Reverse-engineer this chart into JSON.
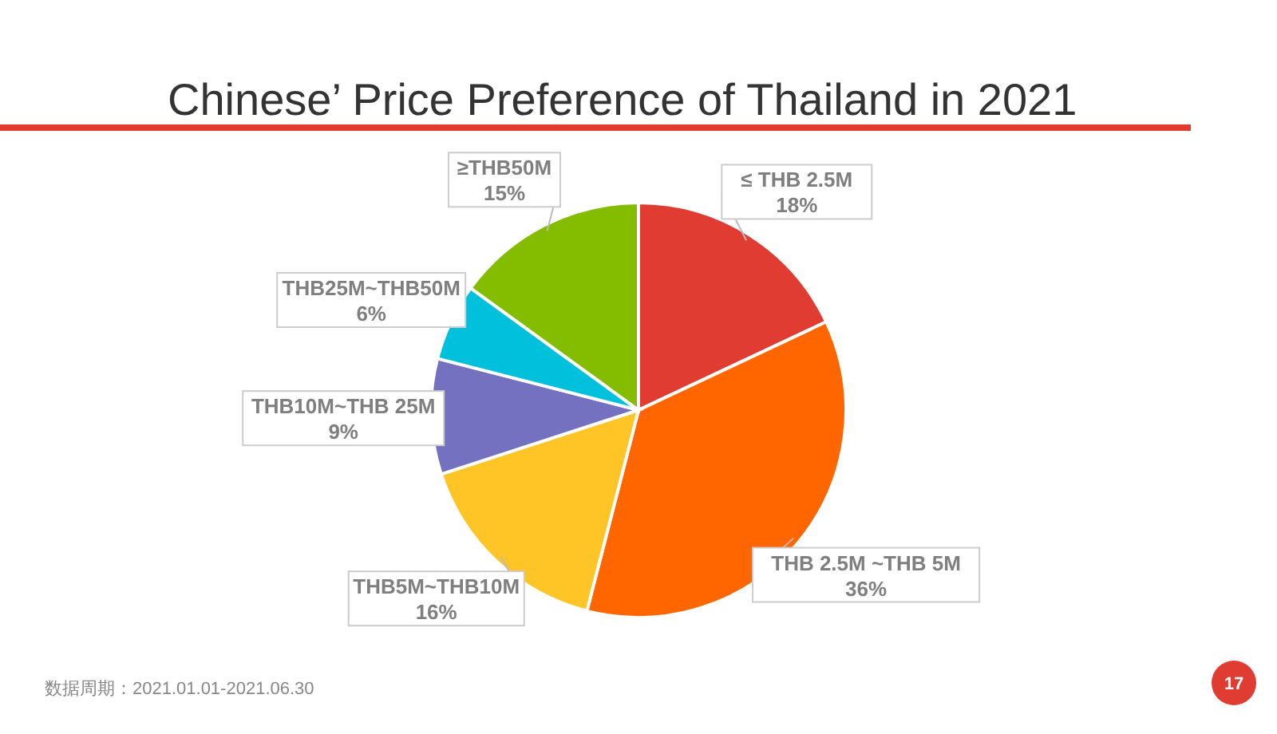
{
  "chart_data": {
    "type": "pie",
    "title": "Chinese’ Price Preference of Thailand in 2021",
    "categories": [
      "≤ THB 2.5M",
      "THB 2.5M ~THB 5M",
      "THB5M~THB10M",
      "THB10M~THB 25M",
      "THB25M~THB50M",
      "≥THB50M"
    ],
    "values": [
      18,
      36,
      16,
      9,
      6,
      15
    ],
    "value_labels": [
      "18%",
      "36%",
      "16%",
      "9%",
      "6%",
      "15%"
    ],
    "colors": [
      "#e03c31",
      "#ff6600",
      "#ffc425",
      "#7471c0",
      "#00c0dc",
      "#84bd00"
    ],
    "annotations": [
      "数据周期：2021.01.01-2021.06.30",
      "17"
    ]
  }
}
